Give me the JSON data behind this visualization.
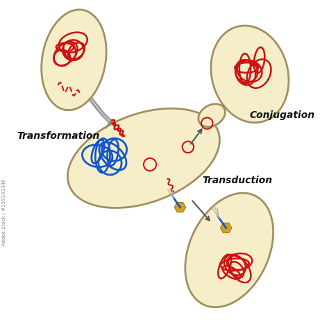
{
  "bg_color": "#ffffff",
  "cell_fill": "#f5eec8",
  "cell_edge": "#a09060",
  "cell_edge_width": 2.0,
  "red_dna": "#cc1111",
  "blue_dna": "#1155cc",
  "gold_phage": "#d4a020",
  "arrow_color": "#555555",
  "gray_tube": "#999999",
  "labels": {
    "transformation": "Transformation",
    "conjugation": "Conjugation",
    "transduction": "Transduction"
  },
  "label_fontsize": 10,
  "label_color": "#111111",
  "watermark": "Adobe Stock | #359143346",
  "watermark_fontsize": 5,
  "watermark_color": "#888888"
}
